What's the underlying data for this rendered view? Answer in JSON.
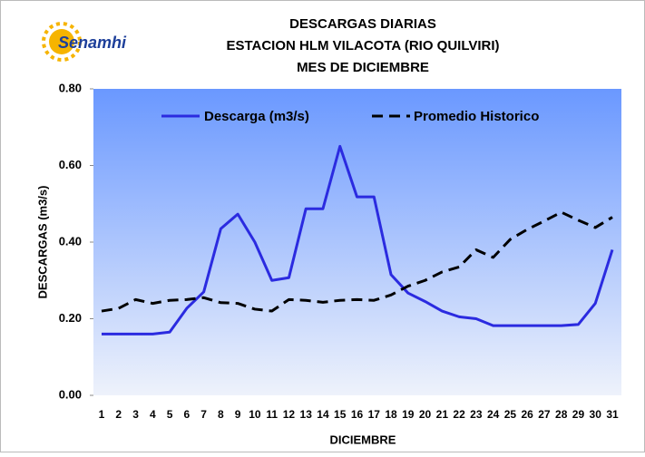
{
  "logo": "Senamhi",
  "chart_data": {
    "type": "line",
    "title": [
      "DESCARGAS DIARIAS",
      "ESTACION HLM VILACOTA (RIO QUILVIRI)",
      "MES DE DICIEMBRE"
    ],
    "xlabel": "DICIEMBRE",
    "ylabel": "DESCARGAS (m3/s)",
    "categories": [
      "1",
      "2",
      "3",
      "4",
      "5",
      "6",
      "7",
      "8",
      "9",
      "10",
      "11",
      "12",
      "13",
      "14",
      "15",
      "16",
      "17",
      "18",
      "19",
      "20",
      "21",
      "22",
      "23",
      "24",
      "25",
      "26",
      "27",
      "28",
      "29",
      "30",
      "31"
    ],
    "series": [
      {
        "name": "Descarga (m3/s)",
        "color": "#2b2be0",
        "dashed": false,
        "values": [
          0.16,
          0.16,
          0.16,
          0.16,
          0.165,
          0.227,
          0.27,
          0.435,
          0.473,
          0.4,
          0.3,
          0.307,
          0.487,
          0.487,
          0.65,
          0.518,
          0.518,
          0.315,
          0.267,
          0.245,
          0.22,
          0.205,
          0.2,
          0.182,
          0.182,
          0.182,
          0.182,
          0.182,
          0.185,
          0.24,
          0.38
        ]
      },
      {
        "name": "Promedio Historico",
        "color": "#000000",
        "dashed": true,
        "values": [
          0.22,
          0.227,
          0.25,
          0.24,
          0.248,
          0.25,
          0.255,
          0.242,
          0.24,
          0.225,
          0.22,
          0.25,
          0.248,
          0.243,
          0.248,
          0.25,
          0.248,
          0.262,
          0.285,
          0.3,
          0.322,
          0.335,
          0.38,
          0.36,
          0.407,
          0.433,
          0.455,
          0.478,
          0.457,
          0.438,
          0.465
        ]
      }
    ],
    "ylim": [
      0,
      0.8
    ],
    "yticks": [
      {
        "value": 0,
        "label": "0.00"
      },
      {
        "value": 0.2,
        "label": "0.20"
      },
      {
        "value": 0.4,
        "label": "0.40"
      },
      {
        "value": 0.6,
        "label": "0.60"
      },
      {
        "value": 0.8,
        "label": "0.80"
      }
    ],
    "legend": "top"
  }
}
